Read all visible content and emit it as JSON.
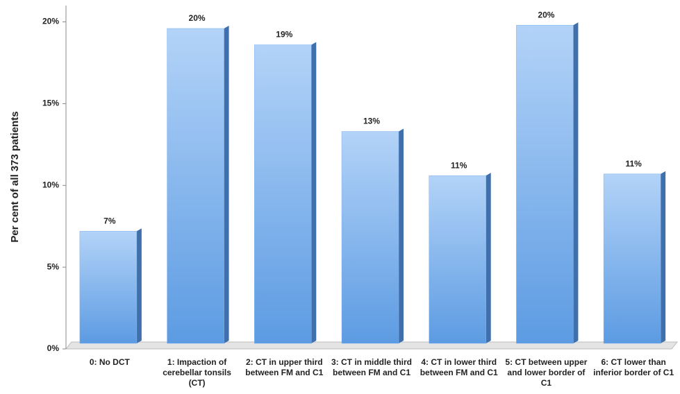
{
  "chart_data": {
    "type": "bar3d",
    "y_label": "Per cent of all 373 patients",
    "categories": [
      "0: No DCT",
      "1: Impaction of cerebellar tonsils (CT)",
      "2: CT in upper third between FM and C1",
      "3: CT in middle third between FM and C1",
      "4: CT in lower third between FM and C1",
      "5: CT between upper and lower border of C1",
      "6: CT lower than inferior border of C1"
    ],
    "values": [
      7.2,
      19.6,
      18.6,
      13.3,
      10.6,
      19.8,
      10.7
    ],
    "value_labels": [
      "7%",
      "20%",
      "19%",
      "13%",
      "11%",
      "20%",
      "11%"
    ],
    "color": "#7fb2ef",
    "ylim": [
      0,
      21
    ],
    "yticks": [
      {
        "value": 0,
        "label": "0%"
      },
      {
        "value": 5,
        "label": "5%"
      },
      {
        "value": 10,
        "label": "10%"
      },
      {
        "value": 15,
        "label": "15%"
      },
      {
        "value": 20,
        "label": "20%"
      }
    ]
  }
}
